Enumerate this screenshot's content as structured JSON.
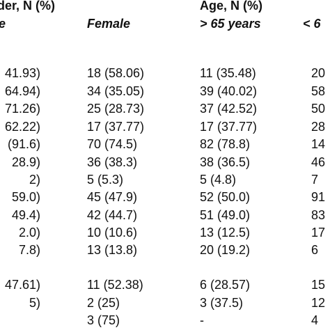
{
  "header": {
    "groups": [
      "der, N (%)",
      "Age, N (%)"
    ],
    "columns": [
      "e",
      "Female",
      "> 65 years",
      "< 6"
    ]
  },
  "table": {
    "rows": [
      [
        "41.93)",
        "18 (58.06)",
        "11 (35.48)",
        "20"
      ],
      [
        "64.94)",
        "34 (35.05)",
        "39 (40.02)",
        "58"
      ],
      [
        "71.26)",
        "25 (28.73)",
        "37 (42.52)",
        "50"
      ],
      [
        "62.22)",
        "17 (37.77)",
        "17 (37.77)",
        "28"
      ],
      [
        "(91.6)",
        "70 (74.5)",
        "82 (78.8)",
        "14"
      ],
      [
        "28.9)",
        "36 (38.3)",
        "38 (36.5)",
        "46"
      ],
      [
        "2)",
        "5 (5.3)",
        "5 (4.8)",
        "7"
      ],
      [
        "59.0)",
        "45 (47.9)",
        "52 (50.0)",
        "91"
      ],
      [
        "49.4)",
        "42 (44.7)",
        "51 (49.0)",
        "83"
      ],
      [
        "2.0)",
        "10 (10.6)",
        "13 (12.5)",
        "17"
      ],
      [
        "7.8)",
        "13 (13.8)",
        "20 (19.2)",
        "6"
      ],
      [
        "47.61)",
        "11 (52.38)",
        "6 (28.57)",
        "15"
      ],
      [
        "5)",
        "2 (25)",
        "3 (37.5)",
        "12"
      ],
      [
        null,
        "3 (75)",
        "-",
        "4"
      ]
    ]
  }
}
